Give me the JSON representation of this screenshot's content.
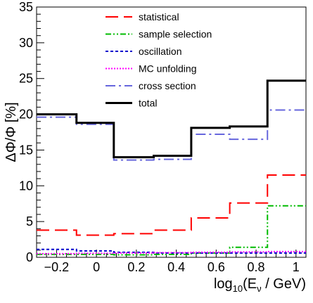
{
  "chart_data": {
    "type": "line",
    "style": "step-histogram",
    "bin_edges": [
      -0.3,
      -0.1,
      0.087,
      0.287,
      0.475,
      0.668,
      0.857,
      1.05
    ],
    "xlim": [
      -0.3,
      1.05
    ],
    "ylim": [
      0,
      35
    ],
    "xticks": [
      -0.2,
      0,
      0.2,
      0.4,
      0.6,
      0.8,
      1
    ],
    "xtick_labels": [
      "−0.2",
      "0",
      "0.2",
      "0.4",
      "0.6",
      "0.8",
      "1"
    ],
    "yticks": [
      0,
      5,
      10,
      15,
      20,
      25,
      30,
      35
    ],
    "ytick_labels": [
      "0",
      "5",
      "10",
      "15",
      "20",
      "25",
      "30",
      "35"
    ],
    "ylabel": "ΔΦ/Φ [%]",
    "xlabel": {
      "pre": "log",
      "sub1": "10",
      "mid": "(E",
      "sub2": "ν",
      "post": " / GeV)"
    },
    "legend_position": "top-center",
    "grid": false,
    "series": [
      {
        "name": "statistical",
        "color": "#ff0000",
        "dash": "long-dash",
        "values": [
          3.8,
          3.1,
          3.3,
          3.8,
          5.5,
          7.6,
          11.5
        ]
      },
      {
        "name": "sample selection",
        "color": "#00bb00",
        "dash": "dash-dot-dot",
        "values": [
          0.4,
          0.4,
          0.35,
          0.4,
          0.6,
          1.4,
          7.2
        ]
      },
      {
        "name": "oscillation",
        "color": "#0000cc",
        "dash": "short-dash",
        "values": [
          1.1,
          0.9,
          0.7,
          0.6,
          0.6,
          0.6,
          0.6
        ]
      },
      {
        "name": "MC unfolding",
        "color": "#ff00ff",
        "dash": "dotted",
        "values": [
          0.5,
          0.55,
          0.6,
          0.65,
          0.7,
          0.75,
          0.8
        ]
      },
      {
        "name": "cross section",
        "color": "#6666dd",
        "dash": "long-dash-dot",
        "values": [
          19.6,
          18.6,
          13.6,
          13.7,
          17.2,
          16.5,
          20.6
        ]
      },
      {
        "name": "total",
        "color": "#000000",
        "dash": "solid",
        "values": [
          20.0,
          18.8,
          14.0,
          14.2,
          18.1,
          18.3,
          24.7
        ]
      }
    ]
  }
}
